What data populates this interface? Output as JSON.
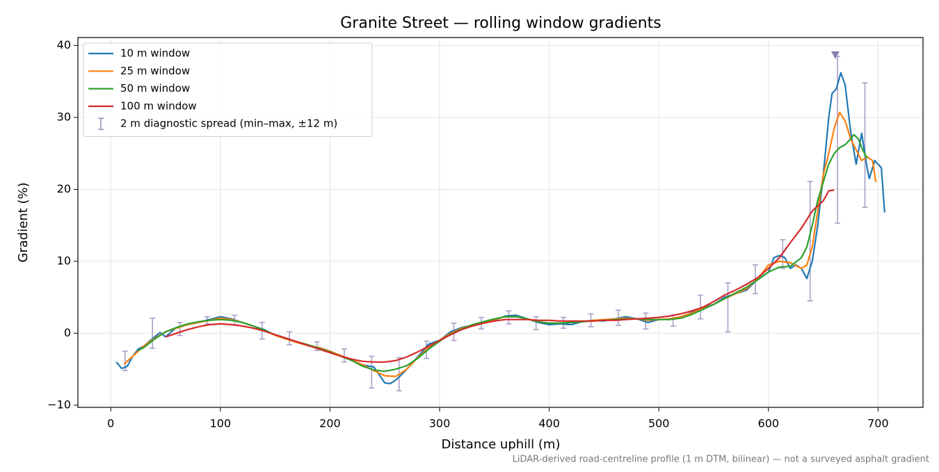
{
  "chart_data": {
    "type": "line",
    "title": "Granite Street — rolling window gradients",
    "x_label": "Distance uphill (m)",
    "y_label": "Gradient (%)",
    "footnote": "LiDAR-derived road-centreline profile (1 m DTM, bilinear) — not a surveyed asphalt gradient",
    "xlim": [
      -30,
      741
    ],
    "ylim": [
      -10.3,
      41.1
    ],
    "xticks": [
      0,
      100,
      200,
      300,
      400,
      500,
      600,
      700
    ],
    "yticks": [
      {
        "value": -10,
        "label": "−10"
      },
      0,
      10,
      20,
      30,
      40
    ],
    "grid": true,
    "legend": "upper left",
    "series": [
      {
        "name": "10 m window",
        "color": "#1f77b4",
        "x": [
          5,
          10,
          15,
          20,
          25,
          30,
          40,
          45,
          50,
          60,
          70,
          80,
          90,
          100,
          110,
          120,
          130,
          140,
          150,
          160,
          170,
          180,
          190,
          200,
          210,
          220,
          230,
          240,
          245,
          250,
          255,
          260,
          265,
          270,
          280,
          290,
          300,
          310,
          320,
          330,
          340,
          350,
          360,
          370,
          380,
          390,
          400,
          410,
          420,
          430,
          440,
          450,
          460,
          470,
          480,
          490,
          500,
          510,
          520,
          530,
          540,
          550,
          560,
          570,
          580,
          590,
          600,
          605,
          610,
          615,
          620,
          625,
          630,
          635,
          640,
          645,
          650,
          655,
          658,
          662,
          666,
          670,
          675,
          680,
          685,
          690,
          692,
          697,
          700,
          703,
          706
        ],
        "values": [
          -4,
          -4.9,
          -4.6,
          -3.2,
          -2.2,
          -1.8,
          -0.5,
          0.1,
          -0.5,
          0.8,
          1.2,
          1.5,
          1.9,
          2.3,
          2.0,
          1.5,
          1.0,
          0.5,
          -0.3,
          -0.8,
          -1.2,
          -1.7,
          -2.0,
          -2.5,
          -3.2,
          -3.8,
          -4.4,
          -4.7,
          -5.8,
          -6.9,
          -7.0,
          -6.5,
          -5.8,
          -5.0,
          -3.3,
          -1.5,
          -1.0,
          0.2,
          0.8,
          1.1,
          1.5,
          1.8,
          2.4,
          2.5,
          2.0,
          1.5,
          1.2,
          1.3,
          1.2,
          1.6,
          1.8,
          1.7,
          2.0,
          2.3,
          2.0,
          1.5,
          1.9,
          2.0,
          2.2,
          2.9,
          3.6,
          4.0,
          5.0,
          5.5,
          6.0,
          7.5,
          8.5,
          10.5,
          10.8,
          10.5,
          9.0,
          9.5,
          9.0,
          7.6,
          10.0,
          15.0,
          22.0,
          30.0,
          33.3,
          34.0,
          36.2,
          34.5,
          28.0,
          23.5,
          27.8,
          23.0,
          21.5,
          24.0,
          23.5,
          23.0,
          16.8
        ]
      },
      {
        "name": "25 m window",
        "color": "#ff7f0e",
        "x": [
          12,
          20,
          30,
          40,
          50,
          60,
          70,
          80,
          90,
          100,
          110,
          120,
          130,
          140,
          150,
          160,
          170,
          180,
          190,
          200,
          210,
          220,
          230,
          240,
          250,
          260,
          270,
          280,
          290,
          300,
          310,
          320,
          330,
          340,
          350,
          360,
          370,
          380,
          390,
          400,
          410,
          420,
          430,
          440,
          450,
          460,
          470,
          480,
          490,
          500,
          510,
          520,
          530,
          540,
          550,
          560,
          570,
          580,
          590,
          600,
          610,
          620,
          630,
          635,
          640,
          645,
          650,
          655,
          660,
          665,
          670,
          675,
          680,
          685,
          690,
          695,
          698
        ],
        "values": [
          -4.3,
          -3.2,
          -1.8,
          -0.7,
          0.2,
          0.7,
          1.2,
          1.5,
          1.8,
          2.1,
          1.9,
          1.5,
          1.0,
          0.4,
          -0.3,
          -0.8,
          -1.3,
          -1.7,
          -2.0,
          -2.5,
          -3.1,
          -3.7,
          -4.4,
          -5.2,
          -5.9,
          -6.0,
          -5.0,
          -3.4,
          -2.0,
          -1.0,
          0.0,
          0.7,
          1.1,
          1.4,
          1.9,
          2.3,
          2.3,
          2.0,
          1.6,
          1.4,
          1.4,
          1.5,
          1.6,
          1.8,
          1.9,
          2.0,
          2.1,
          2.0,
          1.8,
          1.9,
          2.0,
          2.3,
          2.8,
          3.4,
          4.0,
          4.8,
          5.5,
          6.2,
          7.5,
          9.5,
          10.0,
          9.8,
          9.0,
          9.5,
          12.0,
          17.0,
          22.0,
          25.0,
          28.5,
          30.7,
          29.5,
          27.0,
          25.5,
          24.0,
          24.5,
          24.0,
          21.0
        ]
      },
      {
        "name": "50 m window",
        "color": "#2ca02c",
        "x": [
          25,
          30,
          40,
          50,
          60,
          70,
          80,
          90,
          100,
          110,
          120,
          130,
          140,
          150,
          160,
          170,
          180,
          190,
          200,
          210,
          220,
          230,
          240,
          250,
          260,
          270,
          280,
          290,
          300,
          310,
          320,
          330,
          340,
          350,
          360,
          370,
          380,
          390,
          400,
          410,
          420,
          430,
          440,
          450,
          460,
          470,
          480,
          490,
          500,
          510,
          520,
          530,
          540,
          550,
          560,
          570,
          580,
          590,
          600,
          610,
          620,
          630,
          635,
          640,
          645,
          650,
          655,
          660,
          665,
          670,
          675,
          678,
          682,
          686,
          690
        ],
        "values": [
          -2.4,
          -2.0,
          -0.8,
          0.2,
          0.8,
          1.3,
          1.6,
          1.8,
          1.9,
          1.8,
          1.5,
          1.0,
          0.4,
          -0.2,
          -0.7,
          -1.2,
          -1.6,
          -2.1,
          -2.6,
          -3.2,
          -3.8,
          -4.6,
          -5.1,
          -5.3,
          -5.0,
          -4.5,
          -3.5,
          -2.2,
          -1.1,
          -0.1,
          0.6,
          1.2,
          1.6,
          2.0,
          2.3,
          2.3,
          2.0,
          1.6,
          1.4,
          1.4,
          1.5,
          1.6,
          1.7,
          1.8,
          1.9,
          2.0,
          2.0,
          1.9,
          1.9,
          1.9,
          2.1,
          2.6,
          3.3,
          4.0,
          4.8,
          5.6,
          6.4,
          7.4,
          8.5,
          9.2,
          9.3,
          10.5,
          12.0,
          15.0,
          18.5,
          21.0,
          23.5,
          25.0,
          25.8,
          26.2,
          27.0,
          27.6,
          27.0,
          25.5,
          24.3
        ]
      },
      {
        "name": "100 m window",
        "color": "#d62728",
        "x": [
          50,
          60,
          70,
          80,
          90,
          100,
          110,
          120,
          130,
          140,
          150,
          160,
          170,
          180,
          190,
          200,
          210,
          220,
          230,
          240,
          250,
          260,
          270,
          280,
          290,
          300,
          310,
          320,
          330,
          340,
          350,
          360,
          370,
          380,
          390,
          400,
          410,
          420,
          430,
          440,
          450,
          460,
          470,
          480,
          490,
          500,
          510,
          520,
          530,
          540,
          550,
          560,
          570,
          580,
          590,
          600,
          610,
          620,
          630,
          640,
          650,
          655,
          660
        ],
        "values": [
          -0.5,
          0.0,
          0.5,
          0.9,
          1.2,
          1.3,
          1.2,
          1.0,
          0.7,
          0.3,
          -0.2,
          -0.7,
          -1.2,
          -1.7,
          -2.2,
          -2.7,
          -3.2,
          -3.6,
          -3.9,
          -4.0,
          -4.0,
          -3.8,
          -3.3,
          -2.6,
          -1.8,
          -1.0,
          -0.2,
          0.5,
          1.0,
          1.4,
          1.7,
          1.9,
          1.9,
          1.9,
          1.8,
          1.8,
          1.7,
          1.7,
          1.7,
          1.7,
          1.8,
          1.8,
          1.9,
          2.0,
          2.1,
          2.2,
          2.4,
          2.7,
          3.1,
          3.6,
          4.4,
          5.3,
          6.0,
          6.8,
          7.7,
          9.0,
          10.5,
          12.6,
          14.6,
          17.0,
          18.4,
          19.8,
          19.9
        ]
      }
    ],
    "errorbars": {
      "name": "2 m diagnostic spread (min–max, ±12 m)",
      "color": "#9b8fbd",
      "x": [
        13,
        38,
        63,
        88,
        113,
        138,
        163,
        188,
        213,
        238,
        263,
        288,
        313,
        338,
        363,
        388,
        413,
        438,
        463,
        488,
        513,
        538,
        563,
        588,
        613,
        638,
        663,
        688
      ],
      "lower": [
        -5.2,
        -2.1,
        -0.3,
        1.3,
        1.2,
        -0.8,
        -1.6,
        -2.4,
        -4.0,
        -7.6,
        -8.0,
        -3.5,
        -1.0,
        0.6,
        1.3,
        0.5,
        0.7,
        0.9,
        1.1,
        0.6,
        1.0,
        2.0,
        0.2,
        5.5,
        9.0,
        4.5,
        15.3,
        17.5
      ],
      "upper": [
        -2.5,
        2.1,
        1.5,
        2.3,
        2.5,
        1.5,
        0.2,
        -1.2,
        -2.2,
        -3.2,
        -3.4,
        -1.1,
        1.4,
        2.2,
        3.1,
        2.3,
        2.2,
        2.7,
        3.2,
        2.8,
        2.5,
        5.3,
        7.0,
        9.5,
        13.0,
        21.1,
        38.5,
        34.8
      ]
    },
    "peak": {
      "x": 661,
      "y": 38.7,
      "color": "#8c7fb0"
    }
  }
}
